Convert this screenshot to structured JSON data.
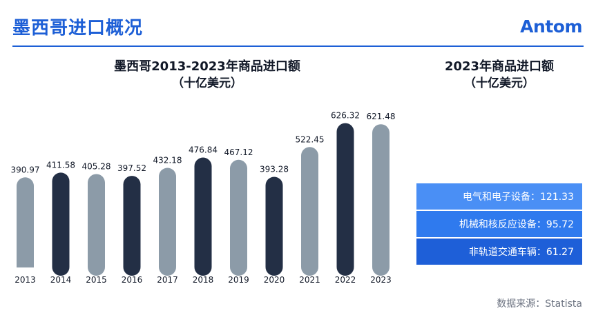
{
  "header": {
    "title": "墨西哥进口概况",
    "logo": "Antom",
    "accent_color": "#1d5fd6"
  },
  "chart_data": {
    "type": "bar",
    "title": "墨西哥2013-2023年商品进口额",
    "subtitle": "（十亿美元）",
    "categories": [
      "2013",
      "2014",
      "2015",
      "2016",
      "2017",
      "2018",
      "2019",
      "2020",
      "2021",
      "2022",
      "2023"
    ],
    "values": [
      390.97,
      411.58,
      405.28,
      397.52,
      432.18,
      476.84,
      467.12,
      393.28,
      522.45,
      626.32,
      621.48
    ],
    "value_labels": [
      "390.97",
      "411.58",
      "405.28",
      "397.52",
      "432.18",
      "476.84",
      "467.12",
      "393.28",
      "522.45",
      "626.32",
      "621.48"
    ],
    "highlight": [
      false,
      true,
      false,
      true,
      false,
      true,
      false,
      true,
      false,
      true,
      false
    ],
    "colors": {
      "normal": "#8c9ba8",
      "highlight": "#232f45"
    },
    "xlabel": "",
    "ylabel": "",
    "ylim": [
      0,
      640
    ],
    "grid": false
  },
  "side_panel": {
    "title": "2023年商品进口额",
    "subtitle": "（十亿美元）",
    "items": [
      {
        "text": "电气和电子设备：121.33",
        "color": "#4a8ff5"
      },
      {
        "text": "机械和核反应设备：95.72",
        "color": "#2f7aee"
      },
      {
        "text": "非轨道交通车辆：61.27",
        "color": "#1e5fd8"
      }
    ]
  },
  "footer": {
    "source": "数据来源：Statista"
  }
}
